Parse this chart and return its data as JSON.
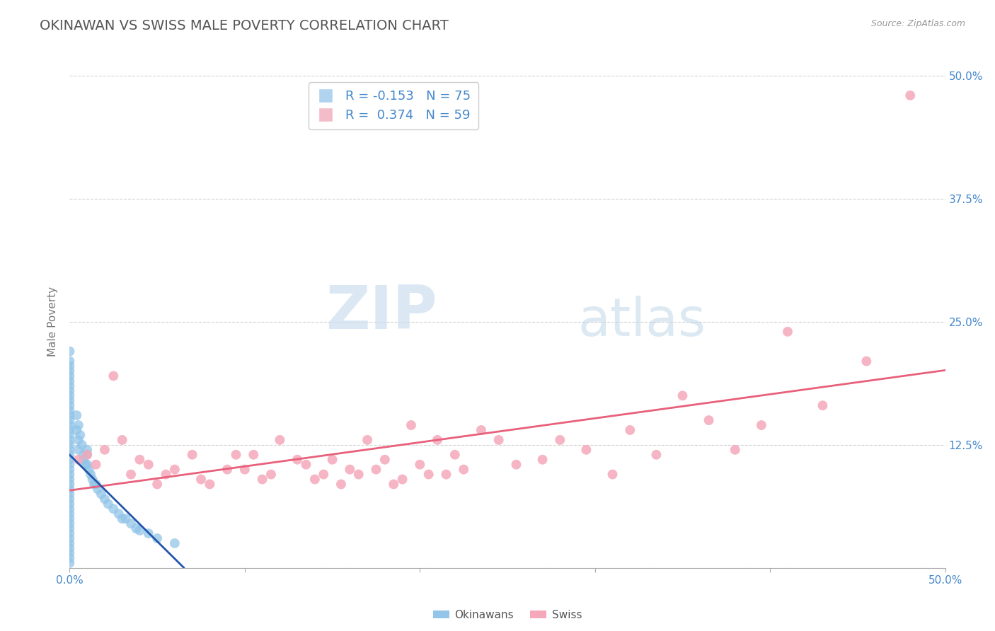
{
  "title": "OKINAWAN VS SWISS MALE POVERTY CORRELATION CHART",
  "source": "Source: ZipAtlas.com",
  "ylabel": "Male Poverty",
  "x_min": 0.0,
  "x_max": 0.5,
  "y_min": 0.0,
  "y_max": 0.5,
  "y_tick_labels_right": [
    "50.0%",
    "37.5%",
    "25.0%",
    "12.5%",
    ""
  ],
  "y_tick_positions_right": [
    0.5,
    0.375,
    0.25,
    0.125,
    0.0
  ],
  "okinawan_color": "#92C5E8",
  "swiss_color": "#F4A8BA",
  "okinawan_line_color": "#2255AA",
  "swiss_line_color": "#E8607A",
  "legend_box_color_okinawan": "#B0D4F0",
  "legend_box_color_swiss": "#F4BCC8",
  "R_okinawan": -0.153,
  "N_okinawan": 75,
  "R_swiss": 0.374,
  "N_swiss": 59,
  "grid_color": "#CCCCCC",
  "background_color": "#FFFFFF",
  "watermark_zip": "ZIP",
  "watermark_atlas": "atlas",
  "title_color": "#555555",
  "title_fontsize": 14,
  "label_color": "#4488CC",
  "okinawan_x": [
    0.0,
    0.0,
    0.0,
    0.0,
    0.0,
    0.0,
    0.0,
    0.0,
    0.0,
    0.0,
    0.0,
    0.0,
    0.0,
    0.0,
    0.0,
    0.0,
    0.0,
    0.0,
    0.0,
    0.0,
    0.0,
    0.0,
    0.0,
    0.0,
    0.0,
    0.0,
    0.0,
    0.0,
    0.0,
    0.0,
    0.0,
    0.0,
    0.0,
    0.0,
    0.0,
    0.0,
    0.0,
    0.0,
    0.0,
    0.0,
    0.0,
    0.0,
    0.0,
    0.004,
    0.004,
    0.005,
    0.005,
    0.005,
    0.006,
    0.007,
    0.008,
    0.008,
    0.009,
    0.01,
    0.01,
    0.01,
    0.011,
    0.012,
    0.013,
    0.014,
    0.015,
    0.016,
    0.018,
    0.02,
    0.022,
    0.025,
    0.028,
    0.03,
    0.032,
    0.035,
    0.038,
    0.04,
    0.045,
    0.05,
    0.06
  ],
  "okinawan_y": [
    0.22,
    0.21,
    0.205,
    0.2,
    0.195,
    0.19,
    0.185,
    0.18,
    0.175,
    0.17,
    0.165,
    0.16,
    0.155,
    0.15,
    0.145,
    0.14,
    0.135,
    0.13,
    0.125,
    0.12,
    0.115,
    0.11,
    0.105,
    0.1,
    0.095,
    0.09,
    0.085,
    0.08,
    0.075,
    0.07,
    0.065,
    0.06,
    0.055,
    0.05,
    0.045,
    0.04,
    0.035,
    0.03,
    0.025,
    0.02,
    0.015,
    0.01,
    0.005,
    0.155,
    0.14,
    0.145,
    0.13,
    0.12,
    0.135,
    0.125,
    0.115,
    0.11,
    0.105,
    0.12,
    0.115,
    0.105,
    0.1,
    0.095,
    0.09,
    0.085,
    0.085,
    0.08,
    0.075,
    0.07,
    0.065,
    0.06,
    0.055,
    0.05,
    0.05,
    0.045,
    0.04,
    0.038,
    0.035,
    0.03,
    0.025
  ],
  "swiss_x": [
    0.005,
    0.01,
    0.015,
    0.02,
    0.025,
    0.03,
    0.035,
    0.04,
    0.045,
    0.05,
    0.055,
    0.06,
    0.07,
    0.075,
    0.08,
    0.09,
    0.095,
    0.1,
    0.105,
    0.11,
    0.115,
    0.12,
    0.13,
    0.135,
    0.14,
    0.145,
    0.15,
    0.155,
    0.16,
    0.165,
    0.17,
    0.175,
    0.18,
    0.185,
    0.19,
    0.195,
    0.2,
    0.205,
    0.21,
    0.215,
    0.22,
    0.225,
    0.235,
    0.245,
    0.255,
    0.27,
    0.28,
    0.295,
    0.31,
    0.32,
    0.335,
    0.35,
    0.365,
    0.38,
    0.395,
    0.41,
    0.43,
    0.455,
    0.48
  ],
  "swiss_y": [
    0.11,
    0.115,
    0.105,
    0.12,
    0.195,
    0.13,
    0.095,
    0.11,
    0.105,
    0.085,
    0.095,
    0.1,
    0.115,
    0.09,
    0.085,
    0.1,
    0.115,
    0.1,
    0.115,
    0.09,
    0.095,
    0.13,
    0.11,
    0.105,
    0.09,
    0.095,
    0.11,
    0.085,
    0.1,
    0.095,
    0.13,
    0.1,
    0.11,
    0.085,
    0.09,
    0.145,
    0.105,
    0.095,
    0.13,
    0.095,
    0.115,
    0.1,
    0.14,
    0.13,
    0.105,
    0.11,
    0.13,
    0.12,
    0.095,
    0.14,
    0.115,
    0.175,
    0.15,
    0.12,
    0.145,
    0.24,
    0.165,
    0.21,
    0.48
  ]
}
